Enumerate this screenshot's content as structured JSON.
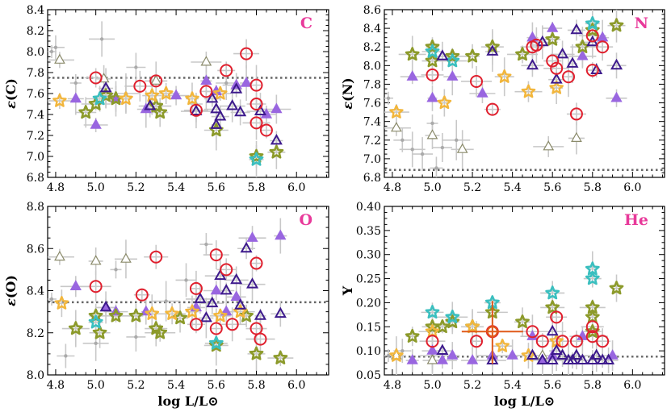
{
  "colors": {
    "tag": "#e8399a",
    "refline": "#666666",
    "errbar": "#c8c8c8",
    "ring": "#e0202e",
    "open_tri": "#3d1a8c",
    "filled_tri": "#9966e0",
    "gray_tri": "#8a8a6a",
    "olive_star": "#8c9a2a",
    "yellow_star": "#f2b63c",
    "teal_star": "#3bbfbf",
    "small_dot": "#aaaaaa",
    "orange_bar": "#e05a1a"
  },
  "chart_data": [
    {
      "type": "scatter",
      "name": "panel-C",
      "tag": "C",
      "ylabel_sym": "ε",
      "ylabel_el": "(C)",
      "xlabel": "",
      "xlim": [
        4.76,
        6.16
      ],
      "ylim": [
        6.8,
        8.4
      ],
      "xticks": [
        "4.8",
        "5.0",
        "5.2",
        "5.4",
        "5.6",
        "5.8",
        "6.0"
      ],
      "yticks": [
        "6.8",
        "7.0",
        "7.2",
        "7.4",
        "7.6",
        "7.8",
        "8.0",
        "8.2",
        "8.4"
      ],
      "hline": 7.75,
      "series": {
        "ring": [
          [
            5.0,
            7.75
          ],
          [
            5.22,
            7.67
          ],
          [
            5.3,
            7.72
          ],
          [
            5.5,
            7.44
          ],
          [
            5.55,
            7.62
          ],
          [
            5.65,
            7.82
          ],
          [
            5.75,
            7.98
          ],
          [
            5.8,
            7.68
          ],
          [
            5.8,
            7.5
          ],
          [
            5.8,
            7.32
          ],
          [
            5.85,
            7.25
          ]
        ],
        "open_tri": [
          [
            5.05,
            7.65
          ],
          [
            5.27,
            7.48
          ],
          [
            5.5,
            7.43
          ],
          [
            5.58,
            7.55
          ],
          [
            5.6,
            7.45
          ],
          [
            5.6,
            7.3
          ],
          [
            5.62,
            7.38
          ],
          [
            5.68,
            7.48
          ],
          [
            5.7,
            7.64
          ],
          [
            5.72,
            7.42
          ],
          [
            5.82,
            7.43
          ],
          [
            5.9,
            7.15
          ]
        ],
        "filled_tri": [
          [
            4.9,
            7.55
          ],
          [
            5.0,
            7.3
          ],
          [
            5.1,
            7.55
          ],
          [
            5.25,
            7.45
          ],
          [
            5.4,
            7.58
          ],
          [
            5.55,
            7.72
          ],
          [
            5.6,
            7.62
          ],
          [
            5.7,
            7.68
          ],
          [
            5.75,
            7.7
          ],
          [
            5.85,
            7.4
          ],
          [
            5.9,
            7.45
          ]
        ],
        "gray_tri": [
          [
            4.82,
            7.92
          ],
          [
            5.04,
            7.74
          ],
          [
            5.3,
            7.72
          ],
          [
            5.55,
            7.9
          ]
        ],
        "olive_star": [
          [
            4.95,
            7.42
          ],
          [
            5.0,
            7.5
          ],
          [
            5.05,
            7.58
          ],
          [
            5.1,
            7.55
          ],
          [
            5.3,
            7.48
          ],
          [
            5.32,
            7.42
          ],
          [
            5.6,
            7.25
          ],
          [
            5.8,
            7.0
          ],
          [
            5.9,
            7.04
          ]
        ],
        "yellow_star": [
          [
            4.82,
            7.53
          ],
          [
            5.15,
            7.55
          ],
          [
            5.28,
            7.58
          ],
          [
            5.35,
            7.6
          ],
          [
            5.48,
            7.55
          ],
          [
            5.62,
            7.6
          ]
        ],
        "teal_star": [
          [
            5.02,
            7.55
          ],
          [
            5.8,
            6.97
          ]
        ],
        "dots": [
          [
            4.78,
            8.0
          ],
          [
            4.8,
            8.04
          ],
          [
            5.03,
            8.12
          ],
          [
            4.9,
            7.7
          ],
          [
            5.2,
            7.85
          ],
          [
            5.15,
            7.6
          ],
          [
            5.5,
            7.5
          ],
          [
            5.65,
            7.7
          ]
        ]
      }
    },
    {
      "type": "scatter",
      "name": "panel-N",
      "tag": "N",
      "ylabel_sym": "ε",
      "ylabel_el": "(N)",
      "xlabel": "",
      "xlim": [
        4.76,
        6.16
      ],
      "ylim": [
        6.8,
        8.6
      ],
      "xticks": [
        "4.8",
        "5.0",
        "5.2",
        "5.4",
        "5.6",
        "5.8",
        "6.0"
      ],
      "yticks": [
        "6.8",
        "7.0",
        "7.2",
        "7.4",
        "7.6",
        "7.8",
        "8.0",
        "8.2",
        "8.4",
        "8.6"
      ],
      "hline": 6.88,
      "series": {
        "ring": [
          [
            5.0,
            7.9
          ],
          [
            5.22,
            7.83
          ],
          [
            5.3,
            7.53
          ],
          [
            5.5,
            8.2
          ],
          [
            5.52,
            8.22
          ],
          [
            5.6,
            8.05
          ],
          [
            5.62,
            7.97
          ],
          [
            5.68,
            7.88
          ],
          [
            5.72,
            7.48
          ],
          [
            5.8,
            8.32
          ],
          [
            5.8,
            7.95
          ],
          [
            5.85,
            8.2
          ]
        ],
        "open_tri": [
          [
            5.05,
            8.1
          ],
          [
            5.3,
            8.15
          ],
          [
            5.5,
            8.0
          ],
          [
            5.55,
            8.25
          ],
          [
            5.62,
            7.85
          ],
          [
            5.65,
            8.12
          ],
          [
            5.7,
            8.02
          ],
          [
            5.72,
            8.38
          ],
          [
            5.8,
            8.25
          ],
          [
            5.82,
            7.95
          ],
          [
            5.92,
            8.0
          ]
        ],
        "filled_tri": [
          [
            4.9,
            7.88
          ],
          [
            5.0,
            7.65
          ],
          [
            5.1,
            7.88
          ],
          [
            5.25,
            7.7
          ],
          [
            5.5,
            8.3
          ],
          [
            5.6,
            8.4
          ],
          [
            5.75,
            8.1
          ],
          [
            5.85,
            8.3
          ],
          [
            5.92,
            7.65
          ]
        ],
        "gray_tri": [
          [
            4.82,
            7.33
          ],
          [
            5.0,
            7.25
          ],
          [
            5.15,
            7.1
          ],
          [
            5.58,
            7.13
          ],
          [
            5.72,
            7.22
          ]
        ],
        "olive_star": [
          [
            4.9,
            8.12
          ],
          [
            5.0,
            8.2
          ],
          [
            5.0,
            8.05
          ],
          [
            5.1,
            8.1
          ],
          [
            5.2,
            8.1
          ],
          [
            5.3,
            8.2
          ],
          [
            5.45,
            8.12
          ],
          [
            5.6,
            8.28
          ],
          [
            5.75,
            8.2
          ],
          [
            5.8,
            8.38
          ],
          [
            5.92,
            8.43
          ]
        ],
        "yellow_star": [
          [
            4.82,
            7.5
          ],
          [
            5.06,
            7.6
          ],
          [
            5.36,
            7.88
          ],
          [
            5.48,
            7.72
          ],
          [
            5.62,
            7.76
          ]
        ],
        "teal_star": [
          [
            5.0,
            8.15
          ],
          [
            5.1,
            8.05
          ],
          [
            5.8,
            8.45
          ]
        ],
        "dots": [
          [
            4.78,
            7.65
          ],
          [
            4.85,
            7.2
          ],
          [
            4.9,
            7.1
          ],
          [
            5.0,
            7.38
          ],
          [
            5.05,
            7.12
          ],
          [
            5.12,
            7.2
          ],
          [
            5.02,
            6.9
          ],
          [
            4.95,
            7.05
          ]
        ]
      }
    },
    {
      "type": "scatter",
      "name": "panel-O",
      "tag": "O",
      "ylabel_sym": "ε",
      "ylabel_el": "(O)",
      "xlabel": "log L/L⊙",
      "xlim": [
        4.76,
        6.16
      ],
      "ylim": [
        8.0,
        8.8
      ],
      "xticks": [
        "4.8",
        "5.0",
        "5.2",
        "5.4",
        "5.6",
        "5.8",
        "6.0"
      ],
      "yticks": [
        "8.0",
        "8.2",
        "8.4",
        "8.6",
        "8.8"
      ],
      "hline": 8.345,
      "series": {
        "ring": [
          [
            5.0,
            8.42
          ],
          [
            5.23,
            8.38
          ],
          [
            5.3,
            8.56
          ],
          [
            5.5,
            8.41
          ],
          [
            5.5,
            8.24
          ],
          [
            5.6,
            8.57
          ],
          [
            5.6,
            8.22
          ],
          [
            5.65,
            8.5
          ],
          [
            5.68,
            8.24
          ],
          [
            5.8,
            8.53
          ],
          [
            5.8,
            8.22
          ],
          [
            5.82,
            8.17
          ]
        ],
        "open_tri": [
          [
            5.05,
            8.32
          ],
          [
            5.52,
            8.36
          ],
          [
            5.55,
            8.27
          ],
          [
            5.58,
            8.34
          ],
          [
            5.62,
            8.47
          ],
          [
            5.65,
            8.4
          ],
          [
            5.7,
            8.45
          ],
          [
            5.72,
            8.33
          ],
          [
            5.75,
            8.6
          ],
          [
            5.78,
            8.43
          ],
          [
            5.82,
            8.28
          ],
          [
            5.92,
            8.29
          ]
        ],
        "filled_tri": [
          [
            4.9,
            8.42
          ],
          [
            5.05,
            8.32
          ],
          [
            5.1,
            8.3
          ],
          [
            5.25,
            8.3
          ],
          [
            5.5,
            8.32
          ],
          [
            5.6,
            8.4
          ],
          [
            5.65,
            8.3
          ],
          [
            5.7,
            8.37
          ],
          [
            5.78,
            8.65
          ],
          [
            5.92,
            8.66
          ]
        ],
        "gray_tri": [
          [
            4.82,
            8.56
          ],
          [
            5.0,
            8.54
          ],
          [
            5.15,
            8.55
          ]
        ],
        "olive_star": [
          [
            4.9,
            8.22
          ],
          [
            5.0,
            8.28
          ],
          [
            5.02,
            8.2
          ],
          [
            5.1,
            8.28
          ],
          [
            5.2,
            8.28
          ],
          [
            5.3,
            8.22
          ],
          [
            5.32,
            8.2
          ],
          [
            5.42,
            8.27
          ],
          [
            5.6,
            8.14
          ],
          [
            5.75,
            8.28
          ],
          [
            5.8,
            8.1
          ],
          [
            5.92,
            8.08
          ]
        ],
        "yellow_star": [
          [
            4.83,
            8.34
          ],
          [
            5.28,
            8.29
          ],
          [
            5.38,
            8.29
          ],
          [
            5.48,
            8.3
          ],
          [
            5.62,
            8.28
          ],
          [
            5.72,
            8.3
          ]
        ],
        "teal_star": [
          [
            5.0,
            8.25
          ],
          [
            5.6,
            8.15
          ]
        ],
        "dots": [
          [
            4.78,
            8.36
          ],
          [
            4.85,
            8.09
          ],
          [
            5.0,
            8.15
          ],
          [
            5.1,
            8.5
          ],
          [
            5.2,
            8.18
          ],
          [
            5.35,
            8.35
          ],
          [
            5.55,
            8.62
          ],
          [
            5.45,
            8.45
          ]
        ]
      }
    },
    {
      "type": "scatter",
      "name": "panel-He",
      "tag": "He",
      "ylabel_sym": "",
      "ylabel_el": "Y",
      "xlabel": "log L/L⊙",
      "xlim": [
        4.76,
        6.16
      ],
      "ylim": [
        0.05,
        0.4
      ],
      "xticks": [
        "4.8",
        "5.0",
        "5.2",
        "5.4",
        "5.6",
        "5.8",
        "6.0"
      ],
      "yticks": [
        "0.05",
        "0.10",
        "0.15",
        "0.20",
        "0.25",
        "0.30",
        "0.35",
        "0.40"
      ],
      "hline": 0.088,
      "series": {
        "ring": [
          [
            5.0,
            0.12
          ],
          [
            5.22,
            0.12
          ],
          [
            5.3,
            0.14
          ],
          [
            5.5,
            0.14
          ],
          [
            5.55,
            0.12
          ],
          [
            5.62,
            0.17
          ],
          [
            5.65,
            0.12
          ],
          [
            5.72,
            0.12
          ],
          [
            5.8,
            0.15
          ],
          [
            5.8,
            0.13
          ],
          [
            5.85,
            0.12
          ]
        ],
        "open_tri": [
          [
            5.05,
            0.1
          ],
          [
            5.3,
            0.08
          ],
          [
            5.5,
            0.09
          ],
          [
            5.55,
            0.08
          ],
          [
            5.6,
            0.08
          ],
          [
            5.62,
            0.1
          ],
          [
            5.65,
            0.09
          ],
          [
            5.68,
            0.08
          ],
          [
            5.7,
            0.08
          ],
          [
            5.72,
            0.09
          ],
          [
            5.75,
            0.08
          ],
          [
            5.8,
            0.08
          ],
          [
            5.82,
            0.09
          ],
          [
            5.85,
            0.08
          ],
          [
            5.88,
            0.08
          ],
          [
            5.6,
            0.14
          ]
        ],
        "filled_tri": [
          [
            4.9,
            0.08
          ],
          [
            5.0,
            0.1
          ],
          [
            5.05,
            0.08
          ],
          [
            5.1,
            0.09
          ],
          [
            5.2,
            0.08
          ],
          [
            5.3,
            0.09
          ],
          [
            5.4,
            0.09
          ],
          [
            5.5,
            0.13
          ],
          [
            5.55,
            0.08
          ],
          [
            5.6,
            0.09
          ],
          [
            5.75,
            0.13
          ],
          [
            5.9,
            0.09
          ]
        ],
        "gray_tri": [
          [
            4.82,
            0.09
          ],
          [
            5.0,
            0.08
          ],
          [
            5.55,
            0.09
          ]
        ],
        "olive_star": [
          [
            4.9,
            0.13
          ],
          [
            5.0,
            0.15
          ],
          [
            5.05,
            0.15
          ],
          [
            5.1,
            0.16
          ],
          [
            5.2,
            0.15
          ],
          [
            5.3,
            0.18
          ],
          [
            5.45,
            0.16
          ],
          [
            5.6,
            0.19
          ],
          [
            5.8,
            0.17
          ],
          [
            5.8,
            0.14
          ],
          [
            5.8,
            0.19
          ],
          [
            5.92,
            0.23
          ]
        ],
        "yellow_star": [
          [
            4.82,
            0.09
          ],
          [
            5.0,
            0.14
          ],
          [
            5.2,
            0.15
          ],
          [
            5.35,
            0.11
          ],
          [
            5.48,
            0.09
          ],
          [
            5.62,
            0.12
          ]
        ],
        "teal_star": [
          [
            5.0,
            0.18
          ],
          [
            5.1,
            0.17
          ],
          [
            5.3,
            0.2
          ],
          [
            5.6,
            0.22
          ],
          [
            5.8,
            0.27
          ],
          [
            5.8,
            0.25
          ]
        ],
        "dots": [
          [
            4.78,
            0.09
          ],
          [
            4.85,
            0.1
          ],
          [
            5.0,
            0.09
          ]
        ],
        "orange_point": [
          5.3,
          0.14
        ]
      }
    }
  ]
}
